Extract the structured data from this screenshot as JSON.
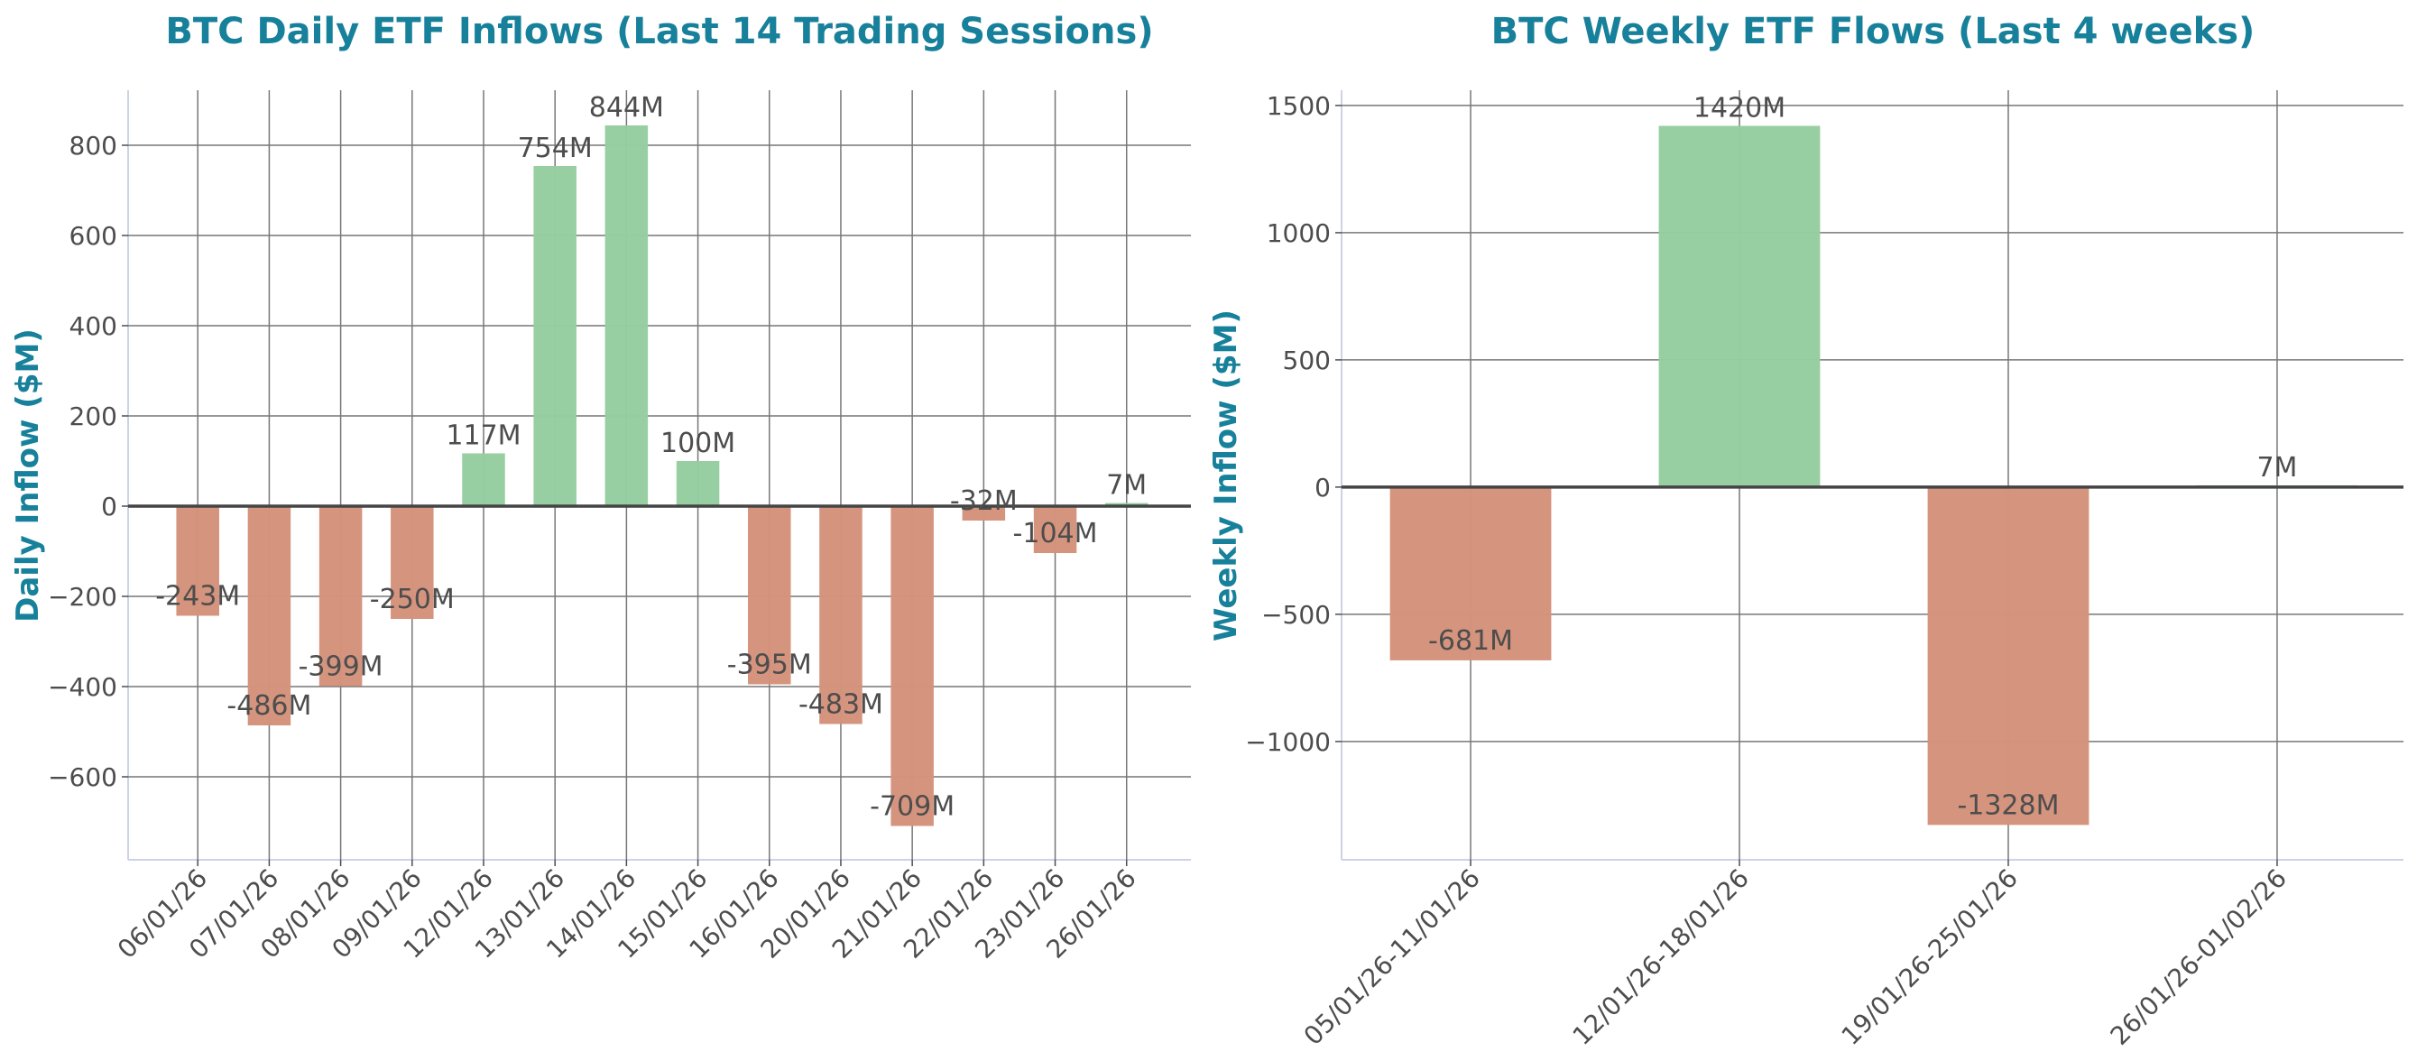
{
  "colors": {
    "positive": "#95cea0",
    "negative": "#d4927b",
    "title": "#17809a",
    "text": "#4d4d4d",
    "grid": "#777777",
    "zero_line": "#444444"
  },
  "chart_data": [
    {
      "type": "bar",
      "title": "BTC Daily ETF Inflows (Last 14 Trading Sessions)",
      "xlabel": "",
      "ylabel": "Daily Inflow ($M)",
      "categories": [
        "06/01/26",
        "07/01/26",
        "08/01/26",
        "09/01/26",
        "12/01/26",
        "13/01/26",
        "14/01/26",
        "15/01/26",
        "16/01/26",
        "20/01/26",
        "21/01/26",
        "22/01/26",
        "23/01/26",
        "26/01/26"
      ],
      "values": [
        -243,
        -486,
        -399,
        -250,
        117,
        754,
        844,
        100,
        -395,
        -483,
        -709,
        -32,
        -104,
        7
      ],
      "data_labels": [
        "-243M",
        "-486M",
        "-399M",
        "-250M",
        "117M",
        "754M",
        "844M",
        "100M",
        "-395M",
        "-483M",
        "-709M",
        "-32M",
        "-104M",
        "7M"
      ],
      "yticks": [
        -600,
        -400,
        -200,
        0,
        200,
        400,
        600,
        800
      ],
      "ytick_labels": [
        "−600",
        "−400",
        "−200",
        "0",
        "200",
        "400",
        "600",
        "800"
      ],
      "ylim": [
        -784,
        922
      ],
      "grid": true
    },
    {
      "type": "bar",
      "title": "BTC Weekly ETF Flows (Last 4 weeks)",
      "xlabel": "",
      "ylabel": "Weekly Inflow ($M)",
      "categories": [
        "05/01/26-11/01/26",
        "12/01/26-18/01/26",
        "19/01/26-25/01/26",
        "26/01/26-01/02/26"
      ],
      "values": [
        -681,
        1420,
        -1328,
        7
      ],
      "data_labels": [
        "-681M",
        "1420M",
        "-1328M",
        "7M"
      ],
      "yticks": [
        -1000,
        -500,
        0,
        500,
        1000,
        1500
      ],
      "ytick_labels": [
        "−1000",
        "−500",
        "0",
        "500",
        "1000",
        "1500"
      ],
      "ylim": [
        -1465,
        1560
      ],
      "grid": true
    }
  ]
}
